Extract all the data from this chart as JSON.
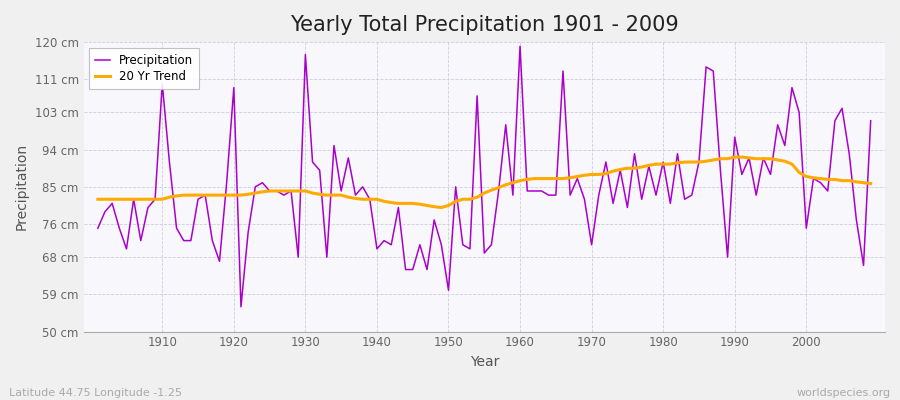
{
  "title": "Yearly Total Precipitation 1901 - 2009",
  "xlabel": "Year",
  "ylabel": "Precipitation",
  "subtitle": "Latitude 44.75 Longitude -1.25",
  "watermark": "worldspecies.org",
  "years": [
    1901,
    1902,
    1903,
    1904,
    1905,
    1906,
    1907,
    1908,
    1909,
    1910,
    1911,
    1912,
    1913,
    1914,
    1915,
    1916,
    1917,
    1918,
    1919,
    1920,
    1921,
    1922,
    1923,
    1924,
    1925,
    1926,
    1927,
    1928,
    1929,
    1930,
    1931,
    1932,
    1933,
    1934,
    1935,
    1936,
    1937,
    1938,
    1939,
    1940,
    1941,
    1942,
    1943,
    1944,
    1945,
    1946,
    1947,
    1948,
    1949,
    1950,
    1951,
    1952,
    1953,
    1954,
    1955,
    1956,
    1957,
    1958,
    1959,
    1960,
    1961,
    1962,
    1963,
    1964,
    1965,
    1966,
    1967,
    1968,
    1969,
    1970,
    1971,
    1972,
    1973,
    1974,
    1975,
    1976,
    1977,
    1978,
    1979,
    1980,
    1981,
    1982,
    1983,
    1984,
    1985,
    1986,
    1987,
    1988,
    1989,
    1990,
    1991,
    1992,
    1993,
    1994,
    1995,
    1996,
    1997,
    1998,
    1999,
    2000,
    2001,
    2002,
    2003,
    2004,
    2005,
    2006,
    2007,
    2008,
    2009
  ],
  "precipitation": [
    75,
    79,
    81,
    75,
    70,
    82,
    72,
    80,
    82,
    110,
    91,
    75,
    72,
    72,
    82,
    83,
    72,
    67,
    86,
    109,
    56,
    74,
    85,
    86,
    84,
    84,
    83,
    84,
    68,
    117,
    91,
    89,
    68,
    95,
    84,
    92,
    83,
    85,
    82,
    70,
    72,
    71,
    80,
    65,
    65,
    71,
    65,
    77,
    71,
    60,
    85,
    71,
    70,
    107,
    69,
    71,
    84,
    100,
    83,
    119,
    84,
    84,
    84,
    83,
    83,
    113,
    83,
    87,
    82,
    71,
    83,
    91,
    81,
    89,
    80,
    93,
    82,
    90,
    83,
    91,
    81,
    93,
    82,
    83,
    91,
    114,
    113,
    89,
    68,
    97,
    88,
    92,
    83,
    92,
    88,
    100,
    95,
    109,
    103,
    75,
    87,
    86,
    84,
    101,
    104,
    93,
    77,
    66,
    101
  ],
  "trend": [
    82.0,
    82.0,
    82.0,
    82.0,
    82.0,
    82.0,
    82.0,
    82.0,
    82.0,
    82.0,
    82.5,
    82.8,
    83.0,
    83.0,
    83.0,
    83.0,
    83.0,
    83.0,
    83.0,
    83.0,
    83.0,
    83.2,
    83.5,
    83.8,
    84.0,
    84.0,
    84.0,
    84.0,
    84.0,
    84.0,
    83.5,
    83.2,
    83.0,
    83.0,
    83.0,
    82.5,
    82.2,
    82.0,
    82.0,
    82.0,
    81.5,
    81.2,
    81.0,
    81.0,
    81.0,
    80.8,
    80.5,
    80.2,
    80.0,
    80.5,
    81.5,
    82.0,
    82.0,
    82.5,
    83.5,
    84.2,
    84.8,
    85.5,
    86.0,
    86.5,
    86.8,
    87.0,
    87.0,
    87.0,
    87.0,
    87.0,
    87.2,
    87.5,
    87.8,
    88.0,
    88.0,
    88.2,
    88.8,
    89.2,
    89.5,
    89.5,
    89.8,
    90.2,
    90.5,
    90.5,
    90.5,
    90.8,
    91.0,
    91.0,
    91.0,
    91.2,
    91.5,
    91.8,
    91.8,
    92.2,
    92.2,
    92.0,
    91.8,
    91.8,
    91.8,
    91.5,
    91.2,
    90.5,
    88.5,
    87.5,
    87.2,
    87.0,
    86.8,
    86.8,
    86.5,
    86.5,
    86.2,
    86.0,
    85.8
  ],
  "precip_color": "#aa00cc",
  "trend_color": "#ffaa00",
  "fig_bg_color": "#f0f0f0",
  "ax_bg_color": "#f8f8fc",
  "grid_color": "#ccccdd",
  "ylim": [
    50,
    120
  ],
  "yticks": [
    50,
    59,
    68,
    76,
    85,
    94,
    103,
    111,
    120
  ],
  "ytick_labels": [
    "50 cm",
    "59 cm",
    "68 cm",
    "76 cm",
    "85 cm",
    "94 cm",
    "103 cm",
    "111 cm",
    "120 cm"
  ],
  "xticks": [
    1910,
    1920,
    1930,
    1940,
    1950,
    1960,
    1970,
    1980,
    1990,
    2000
  ],
  "title_fontsize": 15,
  "axis_fontsize": 10,
  "tick_fontsize": 8.5,
  "legend_fontsize": 8.5
}
